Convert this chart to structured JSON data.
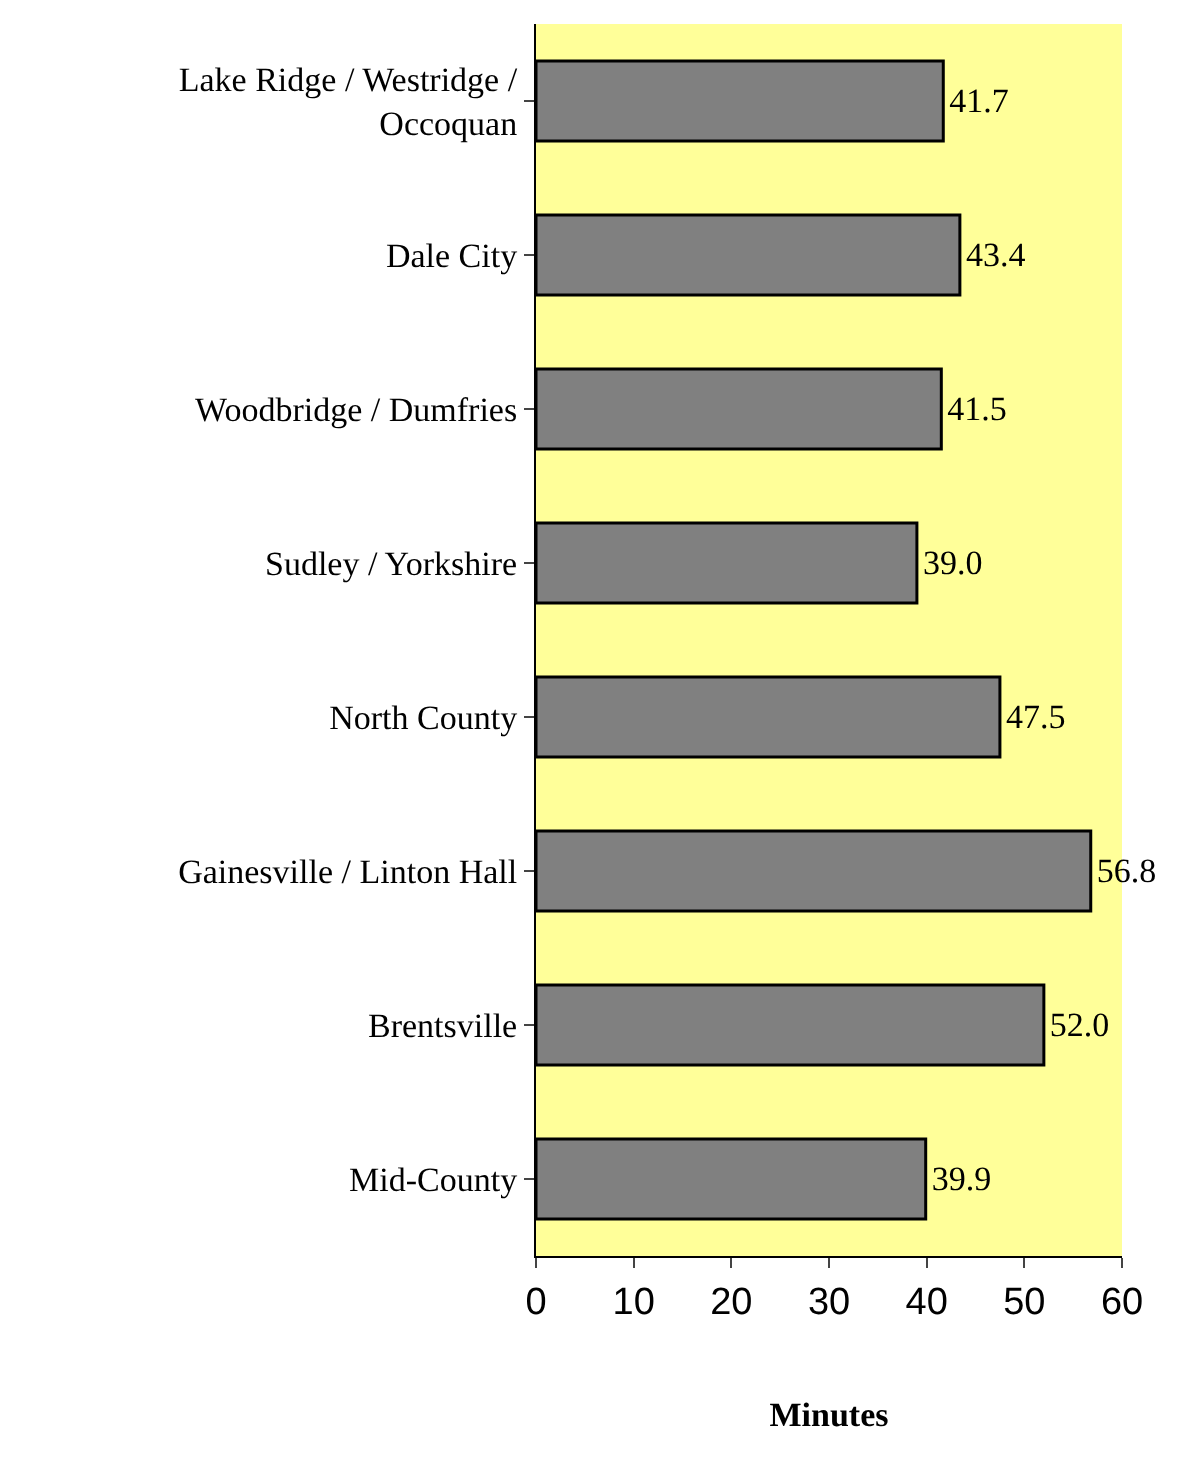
{
  "chart_data": {
    "type": "bar",
    "orientation": "horizontal",
    "xlabel": "Minutes",
    "categories": [
      "Lake Ridge / Westridge / Occoquan",
      "Dale City",
      "Woodbridge / Dumfries",
      "Sudley / Yorkshire",
      "North County",
      "Gainesville / Linton Hall",
      "Brentsville",
      "Mid-County"
    ],
    "values": [
      41.7,
      43.4,
      41.5,
      39.0,
      47.5,
      56.8,
      52.0,
      39.9
    ],
    "value_labels": [
      "41.7",
      "43.4",
      "41.5",
      "39.0",
      "47.5",
      "56.8",
      "52.0",
      "39.9"
    ],
    "color": "#808080",
    "xlim": [
      0,
      60
    ],
    "xticks": [
      0,
      10,
      20,
      30,
      40,
      50,
      60
    ],
    "grid": false
  }
}
